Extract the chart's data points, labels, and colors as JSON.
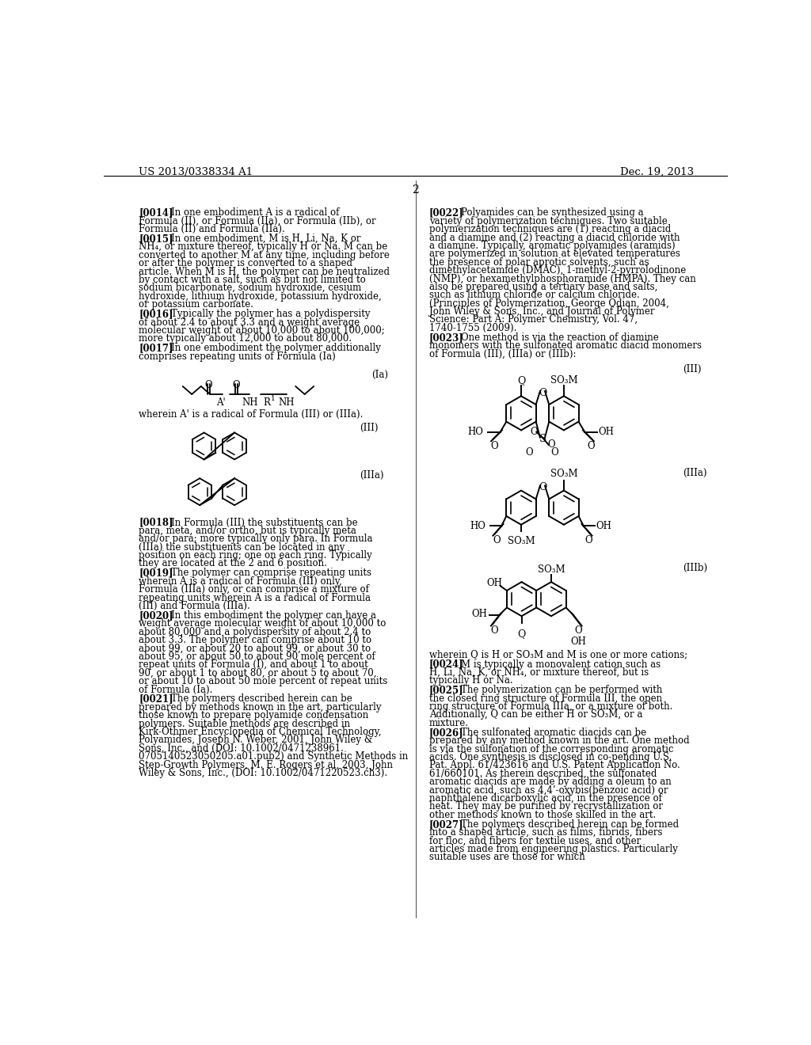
{
  "bg_color": "#ffffff",
  "header_left": "US 2013/0338334 A1",
  "header_right": "Dec. 19, 2013",
  "page_number": "2",
  "left_col_top": [
    {
      "tag": "[0014]",
      "text": "In one embodiment A is a radical of Formula (II), or Formula (IIa), or Formula (IIb), or Formula (II) and Formula (IIa)."
    },
    {
      "tag": "[0015]",
      "text": "In one embodiment, M is H, Li, Na, K or NH₄, or mixture thereof, typically H or Na. M can be converted to another M at any time, including before or after the polymer is converted to a shaped article. When M is H, the polymer can be neutralized by contact with a salt, such as but not limited to sodium bicarbonate, sodium hydroxide, cesium hydroxide, lithium hydroxide, potassium hydroxide, or potassium carbonate."
    },
    {
      "tag": "[0016]",
      "text": "Typically the polymer has a polydispersity of about 2.4 to about 3.3 and a weight average molecular weight of about 10,000 to about 100,000; more typically about 12,000 to about 80,000."
    },
    {
      "tag": "[0017]",
      "text": "In one embodiment the polymer additionally comprises repeating units of Formula (Ia)"
    }
  ],
  "left_col_bot": [
    {
      "tag": "[0018]",
      "text": "In Formula (III) the substituents can be para, meta, and/or ortho, but is typically meta and/or para; more typically only para. In Formula (IIIa) the substituents can be located in any position on each ring; one on each ring. Typically they are located at the 2 and 6 position."
    },
    {
      "tag": "[0019]",
      "text": "The polymer can comprise repeating units wherein A is a radical of Formula (III) only, Formula (IIIa) only, or can comprise a mixture of repeating units wherein A is a radical of Formula (III) and Formula (IIIa)."
    },
    {
      "tag": "[0020]",
      "text": "In this embodiment the polymer can have a weight average molecular weight of about 10,000 to about 80,000 and a polydispersity of about 2.4 to about 3.3. The polymer can comprise about 10 to about 99, or about 20 to about 99, or about 30 to about 95, or about 50 to about 90 mole percent of repeat units of Formula (I), and about 1 to about 90, or about 1 to about 80, or about 5 to about 70, or about 10 to about 50 mole percent of repeat units of Formula (Ia)."
    },
    {
      "tag": "[0021]",
      "text": "The polymers described herein can be prepared by methods known in the art, particularly those known to prepare polyamide condensation polymers.  Suitable methods are described in Kirk-Othmer Encyclopedia of Chemical Technology, Polyamides, Joseph N. Weber, 2001, John Wiley & Sons, Inc., and (DOI: 10.1002/0471238961. 0705140523050205.a01.pub2) and Synthetic Methods in Step-Growth Polymers, M. E. Rogers et al, 2003, John Wiley & Sons, Inc., (DOI: 10.1002/0471220523.ch3)."
    }
  ],
  "right_col_top": [
    {
      "tag": "[0022]",
      "text": "Polyamides can be synthesized using a variety of polymerization techniques.  Two suitable polymerization techniques are (1) reacting a diacid and a diamine and (2) reacting a diacid chloride with a diamine.  Typically, aromatic polyamides (aramids) are polymerized in solution at elevated temperatures the presence of polar aprotic solvents, such as dimethylacetamide  (DMAC),  1-methyl-2-pyrrolodinone (NMP), or hexamethylphosphoramide (HMPA).  They can also be prepared using a tertiary base and salts, such as lithium chloride or calcium chloride. (Principles of Polymerization, George Odian, 2004, John Wiley & Sons, Inc., and Journal of Polymer Science: Part A: Polymer Chemistry, Vol. 47, 1740-1755 (2009)."
    },
    {
      "tag": "[0023]",
      "text": "One method is via the reaction of diamine monomers with the sulfonated aromatic diacid monomers of Formula (III), (IIIa) or (IIIb):"
    }
  ],
  "right_col_bot": [
    {
      "tag": "wherein",
      "text": "wherein Q is H or SO₃M and M is one or more cations;"
    },
    {
      "tag": "[0024]",
      "text": "M is typically a monovalent cation such as H, Li, Na, K, or NH₄, or mixture thereof, but is typically H or Na."
    },
    {
      "tag": "[0025]",
      "text": "The polymerization can be performed with the closed ring structure of Formula III, the open ring structure of Formula IIIa, or a mixture of both. Additionally, Q can be either H or SO₃M, or a mixture."
    },
    {
      "tag": "[0026]",
      "text": "The sulfonated aromatic diacids can be prepared by any method known in the art. One method is via the sulfonation of the corresponding aromatic acids. One synthesis is disclosed in co-pending U.S. Pat. Appl. 61/423616 and U.S. Patent Application No. 61/660101. As therein described, the sulfonated aromatic diacids are made by adding a oleum to an aromatic acid, such as 4,4’-oxybis(benzoic acid) or naphthalene dicarboxylic acid, in the presence of heat. They may be purified by recrystallization or other methods known to those skilled in the art."
    },
    {
      "tag": "[0027]",
      "text": "The polymers described herein can be formed into a shaped article, such as films, fibrids, fibers for floc, and fibers for textile uses, and other articles made from engineering plastics.  Particularly suitable uses are those for which"
    }
  ]
}
